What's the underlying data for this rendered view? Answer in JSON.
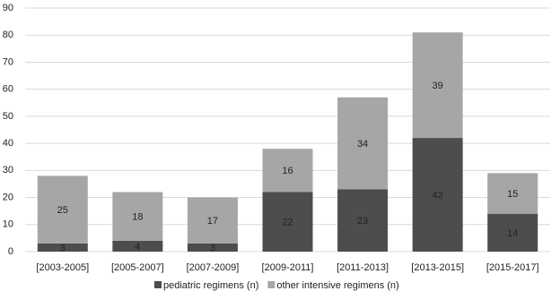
{
  "chart_data": {
    "type": "stacked_bar",
    "categories": [
      "[2003-2005]",
      "[2005-2007]",
      "[2007-2009]",
      "[2009-2011]",
      "[2011-2013]",
      "[2013-2015]",
      "[2015-2017]"
    ],
    "series": [
      {
        "name": "pediatric regimens (n)",
        "color": "#4d4d4d",
        "values": [
          3,
          4,
          3,
          22,
          23,
          42,
          14
        ]
      },
      {
        "name": "other intensive regimens (n)",
        "color": "#a6a6a6",
        "values": [
          25,
          18,
          17,
          16,
          34,
          39,
          15
        ]
      }
    ],
    "ylim": [
      0,
      90
    ],
    "yticks": [
      0,
      10,
      20,
      30,
      40,
      50,
      60,
      70,
      80,
      90
    ],
    "grid": true,
    "legend": "bottom"
  }
}
